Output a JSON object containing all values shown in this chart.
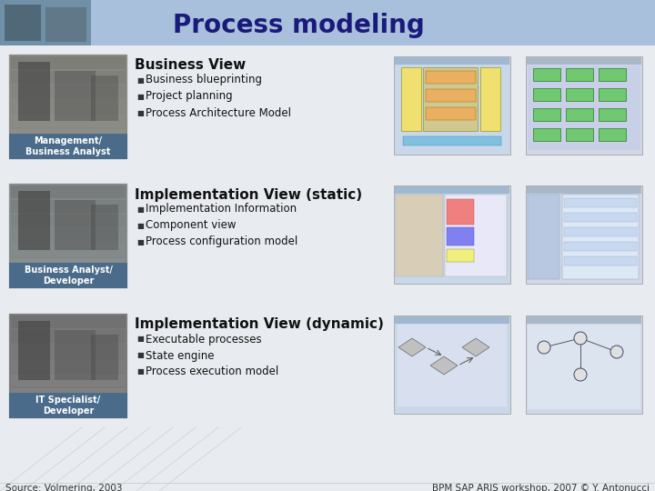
{
  "title": "Process modeling",
  "title_color": "#1a1a7a",
  "header_bg": "#a8c0dc",
  "slide_bg": "#e8ecf0",
  "footer_source": "Source: Volmering, 2003",
  "footer_right": "BPM SAP ARIS workshop, 2007 © Y. Antonucci",
  "rows": [
    {
      "heading": "Business View",
      "bullets": [
        "Business blueprinting",
        "Project planning",
        "Process Architecture Model"
      ],
      "label": "Management/\nBusiness Analyst",
      "label_bg": "#4a6b8a",
      "photo_color": "#888880"
    },
    {
      "heading": "Implementation View (static)",
      "bullets": [
        "Implementation Information",
        "Component view",
        "Process configuration model"
      ],
      "label": "Business Analyst/\nDeveloper",
      "label_bg": "#4a6b8a",
      "photo_color": "#808888"
    },
    {
      "heading": "Implementation View (dynamic)",
      "bullets": [
        "Executable processes",
        "State engine",
        "Process execution model"
      ],
      "label": "IT Specialist/\nDeveloper",
      "label_bg": "#4a6b8a",
      "photo_color": "#787878"
    }
  ]
}
